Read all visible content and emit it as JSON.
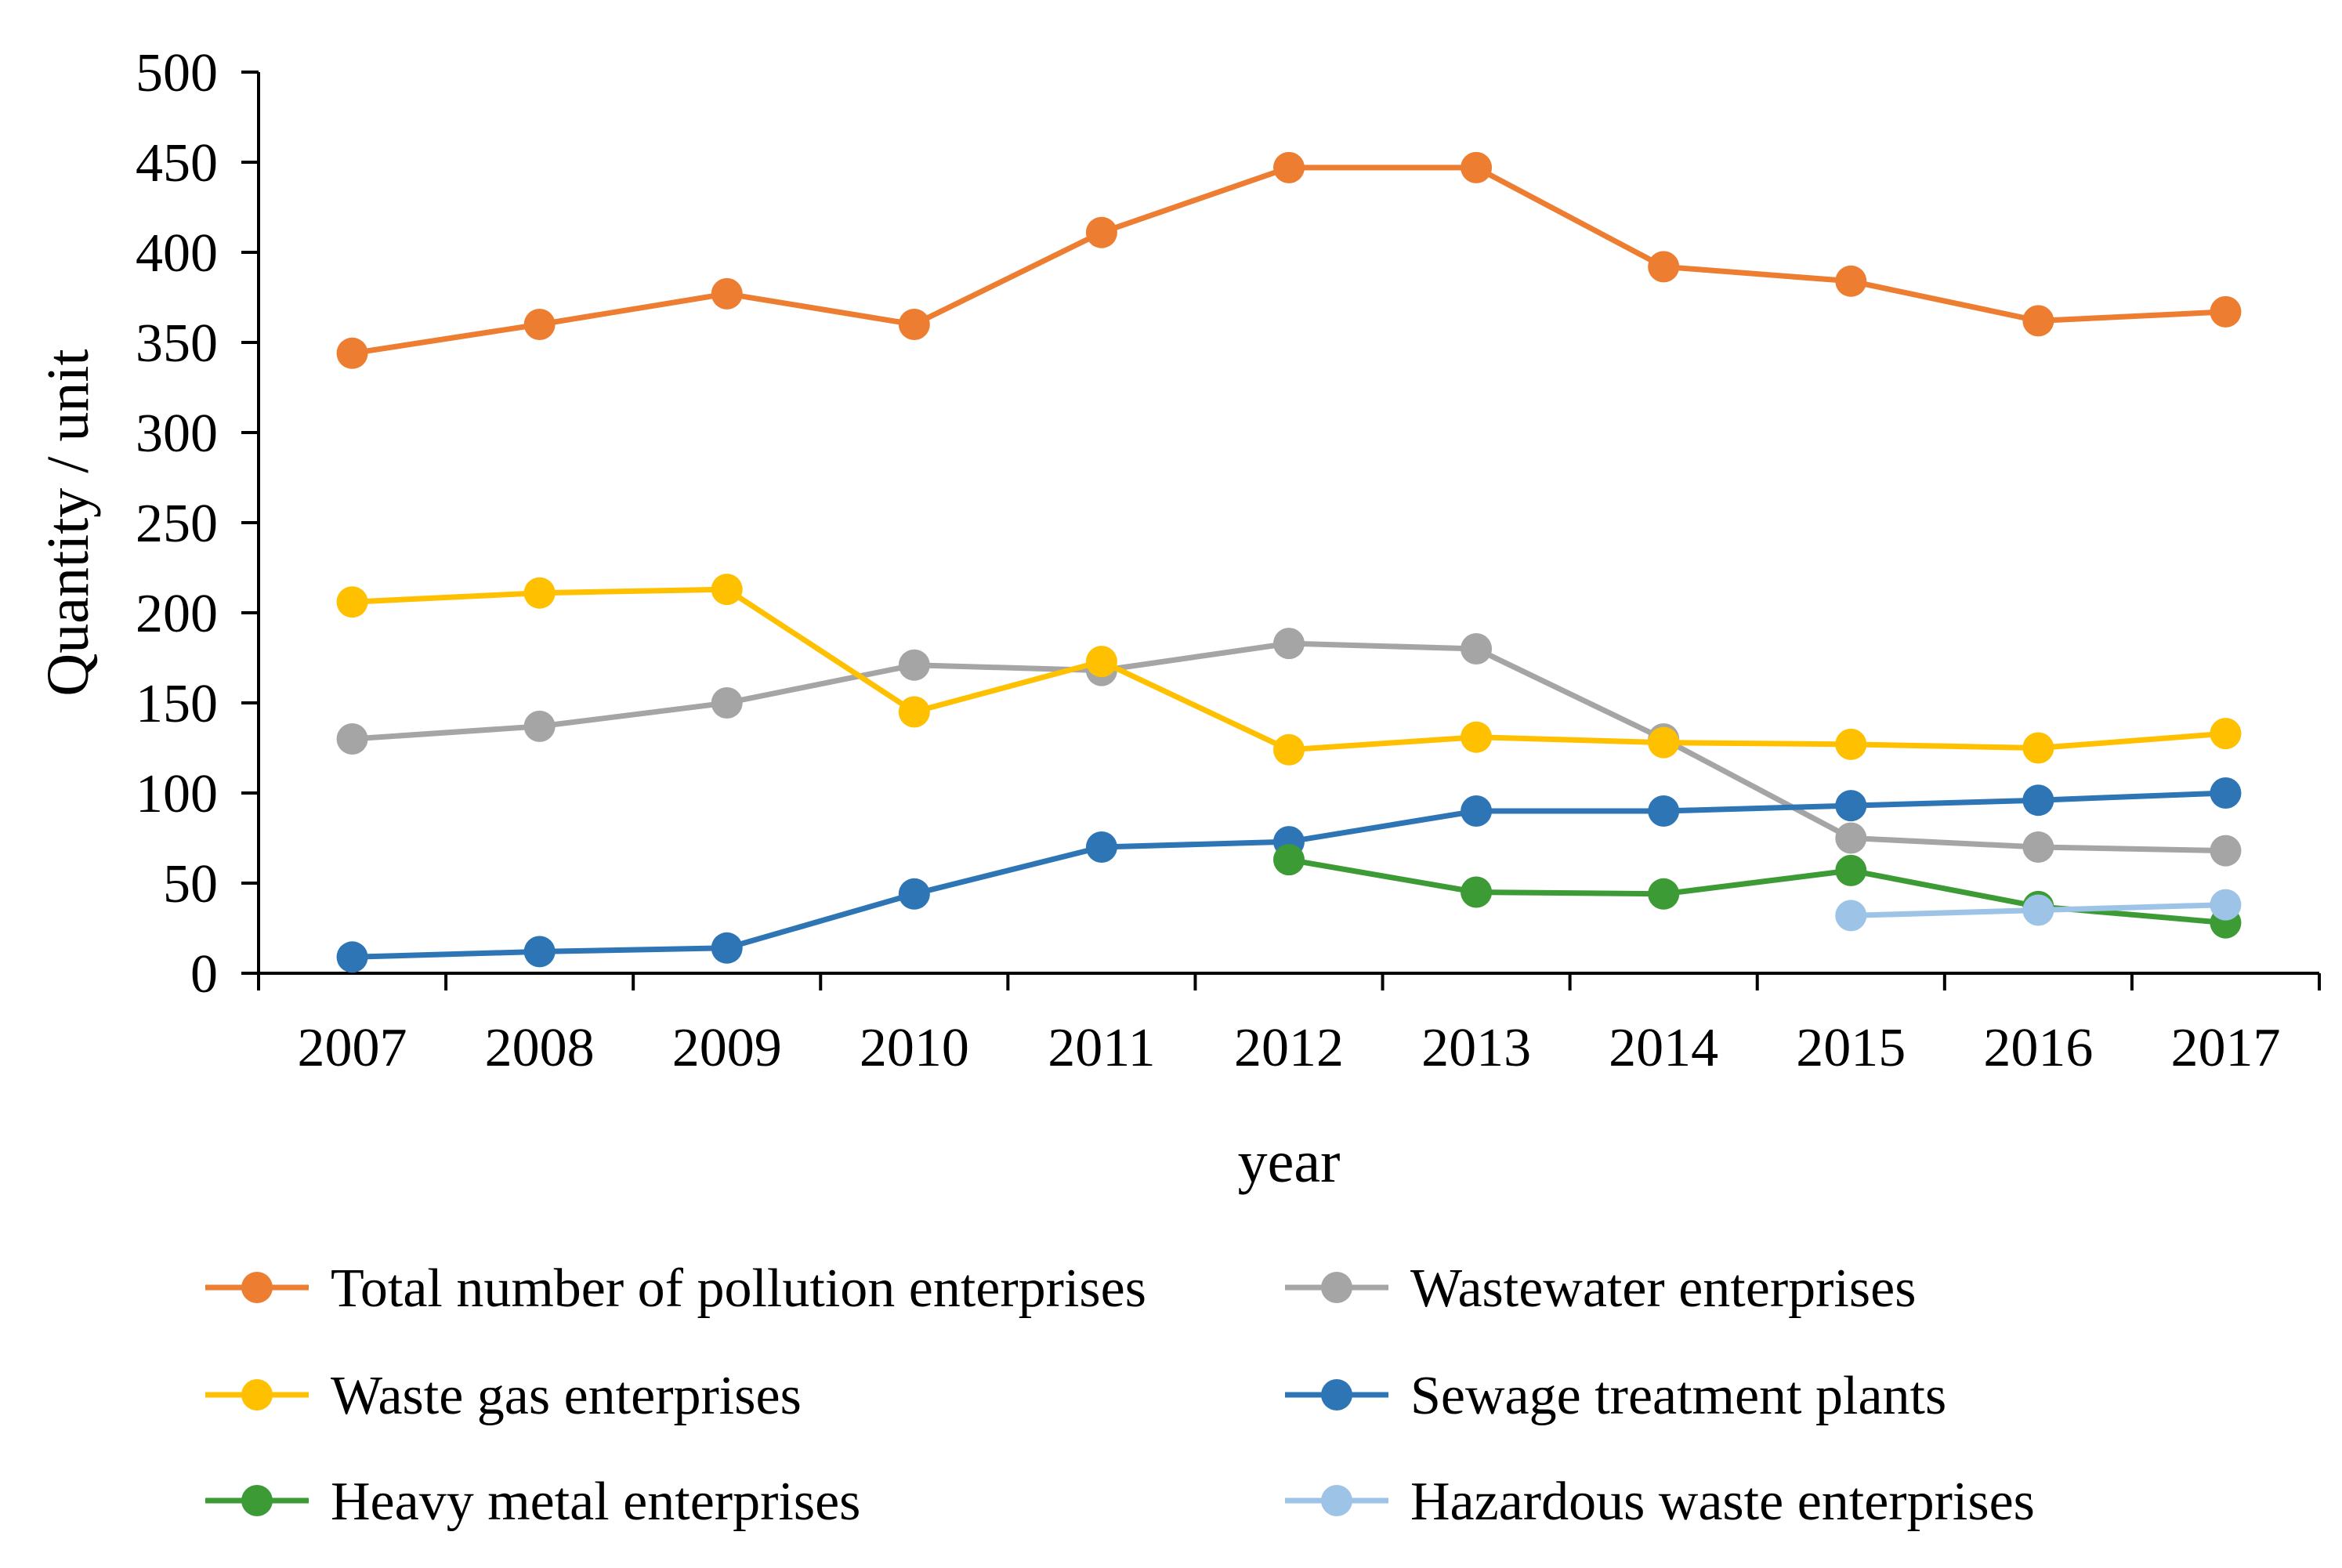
{
  "chart_data": {
    "type": "line",
    "title": "",
    "xlabel": "year",
    "ylabel": "Quantity / unit",
    "ylim": [
      0,
      500
    ],
    "yticks": [
      0,
      50,
      100,
      150,
      200,
      250,
      300,
      350,
      400,
      450,
      500
    ],
    "categories": [
      "2007",
      "2008",
      "2009",
      "2010",
      "2011",
      "2012",
      "2013",
      "2014",
      "2015",
      "2016",
      "2017"
    ],
    "grid": false,
    "legend_position": "bottom",
    "series": [
      {
        "name": "Total number of pollution enterprises",
        "color": "#ED7D31",
        "values": [
          344,
          360,
          377,
          360,
          411,
          447,
          447,
          392,
          384,
          362,
          367
        ]
      },
      {
        "name": "Wastewater enterprises",
        "color": "#A5A5A5",
        "values": [
          130,
          137,
          150,
          171,
          168,
          183,
          180,
          130,
          75,
          70,
          68
        ]
      },
      {
        "name": "Waste gas enterprises",
        "color": "#FFC000",
        "values": [
          206,
          211,
          213,
          145,
          173,
          124,
          131,
          128,
          127,
          125,
          133
        ]
      },
      {
        "name": "Sewage treatment plants",
        "color": "#2E75B6",
        "values": [
          9,
          12,
          14,
          44,
          70,
          73,
          90,
          90,
          93,
          96,
          100
        ]
      },
      {
        "name": "Heavy metal enterprises",
        "color": "#3D9B35",
        "values": [
          null,
          null,
          null,
          null,
          null,
          63,
          45,
          44,
          57,
          37,
          28
        ]
      },
      {
        "name": "Hazardous waste enterprises",
        "color": "#9DC3E6",
        "values": [
          null,
          null,
          null,
          null,
          null,
          null,
          null,
          null,
          32,
          35,
          38
        ]
      }
    ]
  }
}
